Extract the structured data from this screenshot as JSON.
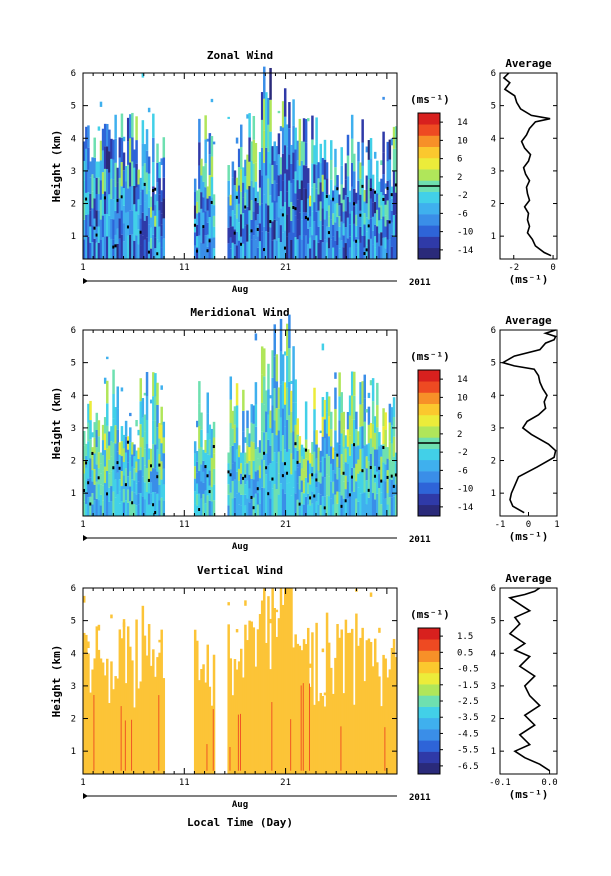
{
  "colors": {
    "palette": [
      "#2a2a7a",
      "#2f3aa8",
      "#2e64d8",
      "#3a8ee8",
      "#3fb0ee",
      "#42d0e8",
      "#6ee0b0",
      "#b0e65a",
      "#ecec3a",
      "#fbc82e",
      "#f79028",
      "#ee4a22",
      "#d8201e"
    ],
    "vertical_fill": "#fcc437",
    "vertical_spike": "#ee4a22",
    "contour": "#000000"
  },
  "time_axis": {
    "ticks": [
      "1",
      "11",
      "21"
    ],
    "month": "Aug",
    "year": "2011",
    "xlabel": "Local Time (Day)"
  },
  "chart_data": [
    {
      "type": "heatmap",
      "title": "Zonal Wind",
      "ylabel": "Height (km)",
      "ylim": [
        0.3,
        6.0
      ],
      "yticks": [
        1,
        2,
        3,
        4,
        5,
        6
      ],
      "x_day_range": [
        1,
        32
      ],
      "data_gaps_days": [
        [
          9.0,
          12.0
        ],
        [
          14.0,
          15.3
        ]
      ],
      "colorbar": {
        "unit": "(ms⁻¹)",
        "range": [
          -16,
          16
        ],
        "ticks": [
          -14,
          -10,
          -6,
          -2,
          2,
          6,
          10,
          14
        ],
        "tick_labels": [
          "-14",
          "-10",
          "-6",
          "-2",
          "2",
          "6",
          "10",
          "14"
        ],
        "zero_line": true
      },
      "typical_value_range": [
        -14,
        6
      ],
      "average_profile": {
        "title": "Average",
        "xlabel": "(ms⁻¹)",
        "xlim": [
          -2.7,
          0.2
        ],
        "xticks": [
          -2,
          0
        ],
        "x": [
          -0.1,
          -0.45,
          -0.9,
          -1.05,
          -1.3,
          -1.2,
          -1.3,
          -1.25,
          -1.45,
          -1.2,
          -1.3,
          -1.35,
          -1.2,
          -1.4,
          -1.5,
          -1.25,
          -1.15,
          -1.45,
          -1.6,
          -1.35,
          -1.2,
          -0.9,
          -0.15,
          -1.1,
          -1.65,
          -1.85,
          -1.95,
          -2.45,
          -2.2,
          -2.5,
          -2.25
        ],
        "height": [
          0.4,
          0.5,
          0.7,
          0.9,
          1.1,
          1.3,
          1.5,
          1.7,
          1.9,
          2.1,
          2.3,
          2.5,
          2.7,
          2.9,
          3.1,
          3.3,
          3.5,
          3.7,
          3.9,
          4.1,
          4.3,
          4.5,
          4.6,
          4.7,
          4.9,
          5.1,
          5.3,
          5.5,
          5.7,
          5.85,
          6.0
        ]
      }
    },
    {
      "type": "heatmap",
      "title": "Meridional Wind",
      "ylabel": "Height (km)",
      "ylim": [
        0.3,
        6.0
      ],
      "yticks": [
        1,
        2,
        3,
        4,
        5,
        6
      ],
      "x_day_range": [
        1,
        32
      ],
      "data_gaps_days": [
        [
          9.0,
          12.0
        ],
        [
          14.0,
          15.3
        ]
      ],
      "colorbar": {
        "unit": "(ms⁻¹)",
        "range": [
          -16,
          16
        ],
        "ticks": [
          -14,
          -10,
          -6,
          -2,
          2,
          6,
          10,
          14
        ],
        "tick_labels": [
          "-14",
          "-10",
          "-6",
          "-2",
          "2",
          "6",
          "10",
          "14"
        ],
        "zero_line": true
      },
      "typical_value_range": [
        -8,
        6
      ],
      "average_profile": {
        "title": "Average",
        "xlabel": "(ms⁻¹)",
        "xlim": [
          -1.0,
          1.0
        ],
        "xticks": [
          -1,
          0,
          1
        ],
        "x": [
          -0.15,
          -0.55,
          -0.65,
          -0.6,
          -0.5,
          -0.35,
          0.3,
          0.9,
          0.95,
          0.7,
          0.1,
          -0.2,
          -0.05,
          0.35,
          0.6,
          0.55,
          0.65,
          0.5,
          0.4,
          0.35,
          0.2,
          -0.5,
          -0.9,
          -0.5,
          0.4,
          0.6,
          0.9,
          0.95,
          0.6,
          0.95
        ],
        "height": [
          0.4,
          0.6,
          0.8,
          1.0,
          1.2,
          1.5,
          1.8,
          2.1,
          2.3,
          2.5,
          2.8,
          3.0,
          3.2,
          3.4,
          3.6,
          3.8,
          4.0,
          4.2,
          4.4,
          4.6,
          4.8,
          4.9,
          5.0,
          5.2,
          5.4,
          5.6,
          5.7,
          5.8,
          5.9,
          6.0
        ]
      }
    },
    {
      "type": "heatmap",
      "title": "Vertical Wind",
      "ylabel": "Height (km)",
      "ylim": [
        0.3,
        6.0
      ],
      "yticks": [
        1,
        2,
        3,
        4,
        5,
        6
      ],
      "x_day_range": [
        1,
        32
      ],
      "data_gaps_days": [
        [
          9.0,
          12.0
        ],
        [
          14.0,
          15.3
        ]
      ],
      "colorbar": {
        "unit": "(ms⁻¹)",
        "range": [
          -7.0,
          2.0
        ],
        "ticks": [
          -6.5,
          -5.5,
          -4.5,
          -3.5,
          -2.5,
          -1.5,
          -0.5,
          0.5,
          1.5
        ],
        "tick_labels": [
          "-6.5",
          "-5.5",
          "-4.5",
          "-3.5",
          "-2.5",
          "-1.5",
          "-0.5",
          "0.5",
          "1.5"
        ],
        "zero_line": false
      },
      "typical_value_range": [
        -0.5,
        0.5
      ],
      "average_profile": {
        "title": "Average",
        "xlabel": "(ms⁻¹)",
        "xlim": [
          -0.1,
          0.015
        ],
        "xticks": [
          -0.1,
          0.0
        ],
        "xtick_labels": [
          "-0.1",
          "0.0"
        ],
        "x": [
          0.0,
          -0.02,
          -0.05,
          -0.07,
          -0.04,
          -0.06,
          -0.03,
          -0.05,
          -0.02,
          -0.04,
          -0.05,
          -0.03,
          -0.06,
          -0.04,
          -0.07,
          -0.05,
          -0.08,
          -0.06,
          -0.07,
          -0.04,
          -0.06,
          -0.08,
          -0.05,
          -0.03,
          -0.02
        ],
        "height": [
          0.4,
          0.6,
          0.8,
          1.0,
          1.2,
          1.5,
          1.8,
          2.1,
          2.4,
          2.7,
          3.0,
          3.3,
          3.6,
          3.9,
          4.1,
          4.3,
          4.6,
          4.9,
          5.1,
          5.3,
          5.5,
          5.7,
          5.8,
          5.9,
          6.0
        ]
      }
    }
  ]
}
